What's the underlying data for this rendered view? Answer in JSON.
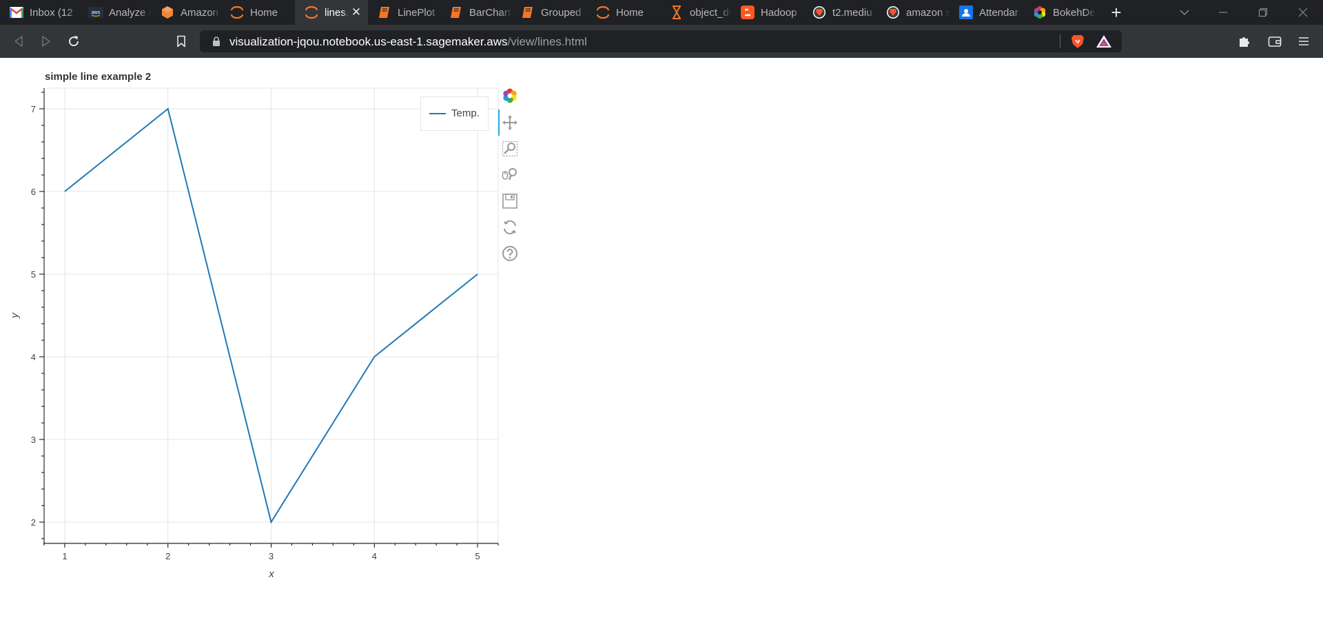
{
  "browser": {
    "tabs": [
      {
        "title": "Inbox (12",
        "icon": "gmail-icon",
        "active": false
      },
      {
        "title": "Analyze E",
        "icon": "aws-icon",
        "active": false
      },
      {
        "title": "Amazon",
        "icon": "amazon-sagemaker-icon",
        "active": false
      },
      {
        "title": "Home",
        "icon": "jupyter-icon",
        "active": false
      },
      {
        "title": "lines.",
        "icon": "jupyter-icon",
        "active": true
      },
      {
        "title": "LinePlot",
        "icon": "notebook-icon",
        "active": false
      },
      {
        "title": "BarChart",
        "icon": "notebook-icon",
        "active": false
      },
      {
        "title": "Grouped",
        "icon": "notebook-icon",
        "active": false
      },
      {
        "title": "Home",
        "icon": "jupyter-icon",
        "active": false
      },
      {
        "title": "object_de",
        "icon": "hourglass-icon",
        "active": false
      },
      {
        "title": "Hadoop",
        "icon": "blogger-icon",
        "active": false
      },
      {
        "title": "t2.mediu",
        "icon": "brave-icon",
        "active": false
      },
      {
        "title": "amazon s",
        "icon": "brave-icon",
        "active": false
      },
      {
        "title": "Attendar",
        "icon": "contacts-icon",
        "active": false
      },
      {
        "title": "BokehDe",
        "icon": "bokeh-icon",
        "active": false
      }
    ],
    "tab_close_glyph": "✕",
    "new_tab_glyph": "+",
    "url_host": "visualization-jqou.notebook.us-east-1.sagemaker.aws",
    "url_path": "/view/lines.html"
  },
  "colors": {
    "line": "#1f77b4",
    "brave_orange": "#fb542b",
    "tab_strip": "#202124",
    "toolbar": "#323639"
  },
  "chart_data": {
    "type": "line",
    "title": "simple line example 2",
    "xlabel": "x",
    "ylabel": "y",
    "x": [
      1,
      2,
      3,
      4,
      5
    ],
    "series": [
      {
        "name": "Temp.",
        "values": [
          6,
          7,
          2,
          4,
          5
        ]
      }
    ],
    "xlim": [
      0.8,
      5.2
    ],
    "ylim": [
      1.75,
      7.25
    ],
    "xticks": [
      1,
      2,
      3,
      4,
      5
    ],
    "yticks": [
      2,
      3,
      4,
      5,
      6,
      7
    ],
    "grid": true,
    "legend_position": "top-right"
  },
  "bokeh_toolbar": {
    "tools": [
      "bokeh-logo-icon",
      "pan-icon",
      "box-zoom-icon",
      "wheel-zoom-icon",
      "save-icon",
      "reset-icon",
      "help-icon"
    ]
  }
}
